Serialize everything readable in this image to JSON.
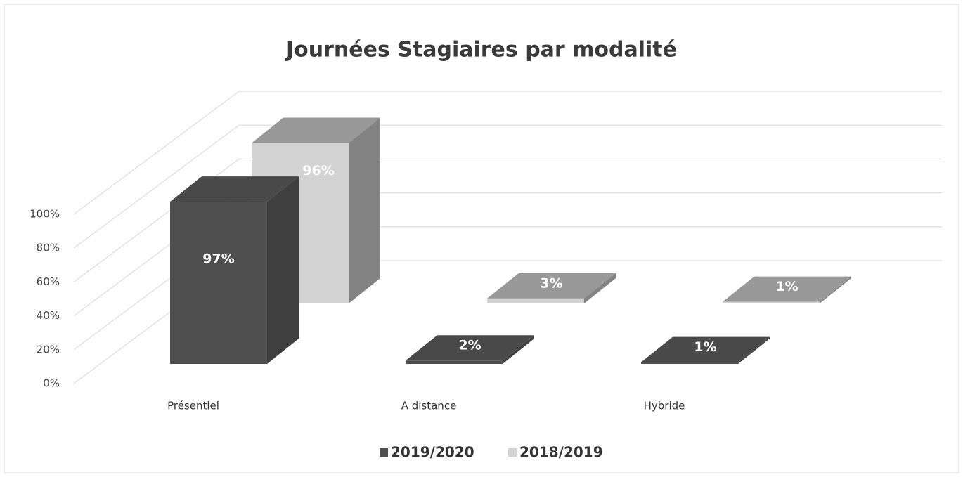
{
  "chart_data": {
    "type": "bar3d",
    "title": "Journées Stagiaires par modalité",
    "categories": [
      "Présentiel",
      "A distance",
      "Hybride"
    ],
    "series": [
      {
        "name": "2019/2020",
        "color": "#4f4f4f",
        "values": [
          97,
          2,
          1
        ],
        "value_labels": [
          "97%",
          "2%",
          "1%"
        ]
      },
      {
        "name": "2018/2019",
        "color": "#d3d3d3",
        "values": [
          96,
          3,
          1
        ],
        "value_labels": [
          "96%",
          "3%",
          "1%"
        ]
      }
    ],
    "ylim": [
      0,
      100
    ],
    "yticks": [
      {
        "value": 0,
        "label": "0%"
      },
      {
        "value": 20,
        "label": "20%"
      },
      {
        "value": 40,
        "label": "40%"
      },
      {
        "value": 60,
        "label": "60%"
      },
      {
        "value": 80,
        "label": "80%"
      },
      {
        "value": 100,
        "label": "100%"
      }
    ],
    "grid": true
  }
}
